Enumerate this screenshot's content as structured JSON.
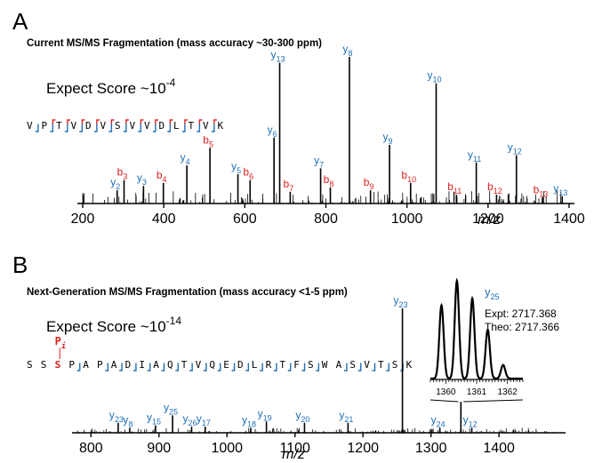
{
  "colors": {
    "ion_y": "#1f6fb8",
    "ion_b": "#e02020",
    "text": "#000000",
    "spectrum": "#000000",
    "phospho": "#e02020"
  },
  "panels": {
    "A": {
      "letter": "A",
      "title": "Current MS/MS Fragmentation  (mass accuracy ~30-300 ppm)",
      "score_text": "Expect Score ~10",
      "score_exp": "-4",
      "xlabel": "m/z",
      "peptide": [
        "V",
        "P",
        "T",
        "V",
        "D",
        "V",
        "S",
        "V",
        "V",
        "D",
        "L",
        "T",
        "V",
        "K"
      ]
    },
    "B": {
      "letter": "B",
      "title": "Next-Generation MS/MS Fragmentation (mass accuracy <1-5 ppm)",
      "score_text": "Expect Score ~10",
      "score_exp": "-14",
      "xlabel": "m/z",
      "peptide": [
        "S",
        "S",
        "S",
        "P",
        "A",
        "P",
        "A",
        "D",
        "I",
        "A",
        "Q",
        "T",
        "V",
        "Q",
        "E",
        "D",
        "L",
        "R",
        "T",
        "F",
        "S",
        "W",
        "A",
        "S",
        "V",
        "T",
        "S",
        "K"
      ],
      "phospho_label": "P",
      "phospho_sub": "i",
      "phospho_bar": "|",
      "inset_ion": "y",
      "inset_ion_sub": "25",
      "expt": "Expt:  2717.368",
      "theo": "Theo:  2717.366"
    }
  },
  "chart_data": [
    {
      "type": "bar",
      "title": "Current MS/MS Fragmentation  (mass accuracy ~30-300 ppm)",
      "xlabel": "m/z",
      "ylabel": "",
      "xlim": [
        200,
        1400
      ],
      "ylim": [
        0,
        100
      ],
      "xticks": [
        200,
        400,
        600,
        800,
        1000,
        1200,
        1400
      ],
      "grid": false,
      "series": [
        {
          "name": "labeled",
          "peaks": [
            {
              "mz": 285,
              "i": 9,
              "label": "y",
              "sub": "2"
            },
            {
              "mz": 302,
              "i": 16,
              "label": "b",
              "sub": "3"
            },
            {
              "mz": 350,
              "i": 12,
              "label": "y",
              "sub": "3"
            },
            {
              "mz": 399,
              "i": 14,
              "label": "b",
              "sub": "4"
            },
            {
              "mz": 457,
              "i": 26,
              "label": "y",
              "sub": "4"
            },
            {
              "mz": 514,
              "i": 38,
              "label": "b",
              "sub": "5"
            },
            {
              "mz": 583,
              "i": 20,
              "label": "y",
              "sub": "5"
            },
            {
              "mz": 613,
              "i": 16,
              "label": "b",
              "sub": "6"
            },
            {
              "mz": 672,
              "i": 45,
              "label": "y",
              "sub": "6"
            },
            {
              "mz": 686,
              "i": 96,
              "label": "y",
              "sub": "13"
            },
            {
              "mz": 712,
              "i": 8,
              "label": "b",
              "sub": "7"
            },
            {
              "mz": 787,
              "i": 24,
              "label": "y",
              "sub": "7"
            },
            {
              "mz": 811,
              "i": 11,
              "label": "b",
              "sub": "8"
            },
            {
              "mz": 858,
              "i": 100,
              "label": "y",
              "sub": "8"
            },
            {
              "mz": 910,
              "i": 9,
              "label": "b",
              "sub": "9"
            },
            {
              "mz": 957,
              "i": 40,
              "label": "y",
              "sub": "9"
            },
            {
              "mz": 1009,
              "i": 14,
              "label": "b",
              "sub": "10"
            },
            {
              "mz": 1072,
              "i": 82,
              "label": "y",
              "sub": "10"
            },
            {
              "mz": 1122,
              "i": 6,
              "label": "b",
              "sub": "11"
            },
            {
              "mz": 1171,
              "i": 28,
              "label": "y",
              "sub": "11"
            },
            {
              "mz": 1221,
              "i": 6,
              "label": "b",
              "sub": "12"
            },
            {
              "mz": 1270,
              "i": 33,
              "label": "y",
              "sub": "12"
            },
            {
              "mz": 1334,
              "i": 4,
              "label": "b",
              "sub": "13"
            },
            {
              "mz": 1383,
              "i": 5,
              "label": "y",
              "sub": "13"
            }
          ]
        }
      ]
    },
    {
      "type": "bar",
      "title": "Next-Generation MS/MS Fragmentation (mass accuracy <1-5 ppm)",
      "xlabel": "m/z",
      "ylabel": "",
      "xlim": [
        780,
        1490
      ],
      "ylim": [
        0,
        100
      ],
      "xticks": [
        800,
        900,
        1000,
        1100,
        1200,
        1300,
        1400
      ],
      "grid": false,
      "series": [
        {
          "name": "labeled",
          "peaks": [
            {
              "mz": 840,
              "i": 8,
              "label": "y",
              "sub": "23"
            },
            {
              "mz": 857,
              "i": 4,
              "label": "y",
              "sub": "8"
            },
            {
              "mz": 895,
              "i": 6,
              "label": "y",
              "sub": "15"
            },
            {
              "mz": 920,
              "i": 14,
              "label": "y",
              "sub": "25"
            },
            {
              "mz": 948,
              "i": 5,
              "label": "y",
              "sub": "26"
            },
            {
              "mz": 968,
              "i": 5,
              "label": "y",
              "sub": "17"
            },
            {
              "mz": 1035,
              "i": 4,
              "label": "y",
              "sub": "18"
            },
            {
              "mz": 1058,
              "i": 9,
              "label": "y",
              "sub": "19"
            },
            {
              "mz": 1114,
              "i": 8,
              "label": "y",
              "sub": "20"
            },
            {
              "mz": 1178,
              "i": 8,
              "label": "y",
              "sub": "21"
            },
            {
              "mz": 1258,
              "i": 100,
              "label": "y",
              "sub": "23"
            },
            {
              "mz": 1313,
              "i": 4,
              "label": "y",
              "sub": "24"
            },
            {
              "mz": 1344,
              "i": 25,
              "label": "",
              "sub": ""
            },
            {
              "mz": 1360,
              "i": 4,
              "label": "y",
              "sub": "12"
            }
          ]
        }
      ],
      "inset": {
        "xlim": [
          1359.5,
          1362.5
        ],
        "xticks": [
          1360,
          1361,
          1362
        ],
        "peaks": [
          {
            "mz": 1359.86,
            "i": 75
          },
          {
            "mz": 1360.36,
            "i": 100
          },
          {
            "mz": 1360.86,
            "i": 82
          },
          {
            "mz": 1361.36,
            "i": 50
          },
          {
            "mz": 1361.86,
            "i": 14
          }
        ]
      }
    }
  ]
}
